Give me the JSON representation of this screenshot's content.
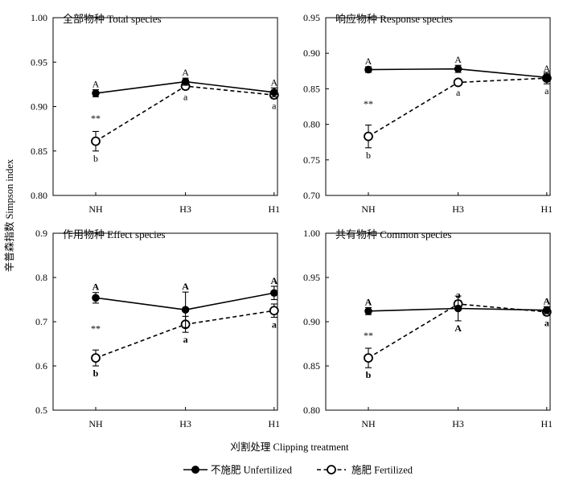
{
  "chart_data": [
    {
      "type": "line",
      "title": "全部物种 Total species",
      "categories": [
        "NH",
        "H3",
        "H1"
      ],
      "ylim": [
        0.8,
        1.0
      ],
      "yticks": [
        "0.80",
        "0.85",
        "0.90",
        "0.95",
        "1.00"
      ],
      "letter_style": "normal",
      "series": [
        {
          "name": "不施肥 Unfertilized",
          "values": [
            0.915,
            0.928,
            0.916
          ],
          "errors": [
            0.004,
            0.004,
            0.005
          ],
          "letters": [
            "A",
            "A",
            "A"
          ]
        },
        {
          "name": "施肥 Fertilized",
          "values": [
            0.861,
            0.923,
            0.913
          ],
          "errors": [
            0.011,
            0.004,
            0.004
          ],
          "letters": [
            "b",
            "a",
            "a"
          ]
        }
      ],
      "annotations": [
        {
          "category": "NH",
          "text": "**"
        }
      ]
    },
    {
      "type": "line",
      "title": "响应物种 Response species",
      "categories": [
        "NH",
        "H3",
        "H1"
      ],
      "ylim": [
        0.7,
        0.95
      ],
      "yticks": [
        "0.70",
        "0.75",
        "0.80",
        "0.85",
        "0.90",
        "0.95"
      ],
      "letter_style": "normal",
      "series": [
        {
          "name": "不施肥 Unfertilized",
          "values": [
            0.877,
            0.878,
            0.866
          ],
          "errors": [
            0.004,
            0.005,
            0.005
          ],
          "letters": [
            "A",
            "A",
            "A"
          ]
        },
        {
          "name": "施肥 Fertilized",
          "values": [
            0.783,
            0.859,
            0.865
          ],
          "errors": [
            0.016,
            0.004,
            0.008
          ],
          "letters": [
            "b",
            "a",
            "a"
          ]
        }
      ],
      "annotations": [
        {
          "category": "NH",
          "text": "**"
        }
      ]
    },
    {
      "type": "line",
      "title": "作用物种  Effect species",
      "categories": [
        "NH",
        "H3",
        "H1"
      ],
      "ylim": [
        0.5,
        0.9
      ],
      "yticks": [
        "0.5",
        "0.6",
        "0.7",
        "0.8",
        "0.9"
      ],
      "letter_style": "bold",
      "series": [
        {
          "name": "不施肥 Unfertilized",
          "values": [
            0.754,
            0.727,
            0.765
          ],
          "errors": [
            0.012,
            0.04,
            0.015
          ],
          "letters": [
            "A",
            "A",
            "A"
          ]
        },
        {
          "name": "施肥 Fertilized",
          "values": [
            0.618,
            0.694,
            0.725
          ],
          "errors": [
            0.018,
            0.018,
            0.015
          ],
          "letters": [
            "b",
            "a",
            "a"
          ]
        }
      ],
      "annotations": [
        {
          "category": "NH",
          "text": "**"
        }
      ]
    },
    {
      "type": "line",
      "title": "共有物种 Common species",
      "categories": [
        "NH",
        "H3",
        "H1"
      ],
      "ylim": [
        0.8,
        1.0
      ],
      "yticks": [
        "0.80",
        "0.85",
        "0.90",
        "0.95",
        "1.00"
      ],
      "letter_style": "bold",
      "series": [
        {
          "name": "不施肥 Unfertilized",
          "values": [
            0.912,
            0.915,
            0.913
          ],
          "errors": [
            0.004,
            0.014,
            0.004
          ],
          "letters": [
            "A",
            "A",
            "A"
          ]
        },
        {
          "name": "施肥 Fertilized",
          "values": [
            0.859,
            0.92,
            0.911
          ],
          "errors": [
            0.011,
            0.004,
            0.004
          ],
          "letters": [
            "b",
            "a",
            "a"
          ]
        }
      ],
      "annotations": [
        {
          "category": "NH",
          "text": "**"
        }
      ]
    }
  ],
  "xlabel": "刈割处理  Clipping treatment",
  "ylabel": "辛普森指数  Simpson index",
  "legend": {
    "placement": "bottom",
    "items": [
      {
        "marker": "filled-circle",
        "style": "solid",
        "label": "不施肥 Unfertilized"
      },
      {
        "marker": "open-circle",
        "style": "dashed",
        "label": "施肥  Fertilized"
      }
    ]
  }
}
